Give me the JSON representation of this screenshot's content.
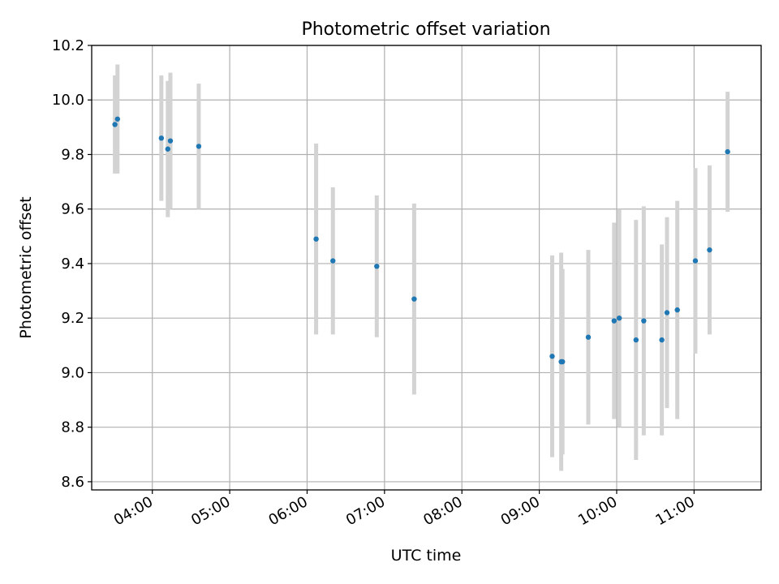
{
  "chart_data": {
    "type": "scatter",
    "title": "Photometric offset variation",
    "xlabel": "UTC time",
    "ylabel": "Photometric offset",
    "x_ticks": [
      "04:00",
      "05:00",
      "06:00",
      "07:00",
      "08:00",
      "09:00",
      "10:00",
      "11:00"
    ],
    "y_ticks": [
      "8.6",
      "8.8",
      "9.0",
      "9.2",
      "9.4",
      "9.6",
      "9.8",
      "10.0",
      "10.2"
    ],
    "xlim": [
      "03:13",
      "11:52"
    ],
    "ylim": [
      8.57,
      10.2
    ],
    "grid": true,
    "colors": {
      "points": "#1f77b4",
      "error_bars": "#d3d3d3",
      "grid": "#b0b0b0"
    },
    "points": [
      {
        "x": "03:31",
        "y": 9.91,
        "yerr": 0.18
      },
      {
        "x": "03:33",
        "y": 9.93,
        "yerr": 0.2
      },
      {
        "x": "04:07",
        "y": 9.86,
        "yerr": 0.23
      },
      {
        "x": "04:12",
        "y": 9.82,
        "yerr": 0.25
      },
      {
        "x": "04:14",
        "y": 9.85,
        "yerr": 0.25
      },
      {
        "x": "04:36",
        "y": 9.83,
        "yerr": 0.23
      },
      {
        "x": "06:07",
        "y": 9.49,
        "yerr": 0.35
      },
      {
        "x": "06:20",
        "y": 9.41,
        "yerr": 0.27
      },
      {
        "x": "06:54",
        "y": 9.39,
        "yerr": 0.26
      },
      {
        "x": "07:23",
        "y": 9.27,
        "yerr": 0.35
      },
      {
        "x": "09:10",
        "y": 9.06,
        "yerr": 0.37
      },
      {
        "x": "09:17",
        "y": 9.04,
        "yerr": 0.4
      },
      {
        "x": "09:18",
        "y": 9.04,
        "yerr": 0.34
      },
      {
        "x": "09:38",
        "y": 9.13,
        "yerr": 0.32
      },
      {
        "x": "09:58",
        "y": 9.19,
        "yerr": 0.36
      },
      {
        "x": "10:02",
        "y": 9.2,
        "yerr": 0.4
      },
      {
        "x": "10:15",
        "y": 9.12,
        "yerr": 0.44
      },
      {
        "x": "10:21",
        "y": 9.19,
        "yerr": 0.42
      },
      {
        "x": "10:35",
        "y": 9.12,
        "yerr": 0.35
      },
      {
        "x": "10:39",
        "y": 9.22,
        "yerr": 0.35
      },
      {
        "x": "10:47",
        "y": 9.23,
        "yerr": 0.4
      },
      {
        "x": "11:01",
        "y": 9.41,
        "yerr": 0.34
      },
      {
        "x": "11:12",
        "y": 9.45,
        "yerr": 0.31
      },
      {
        "x": "11:26",
        "y": 9.81,
        "yerr": 0.22
      }
    ]
  }
}
